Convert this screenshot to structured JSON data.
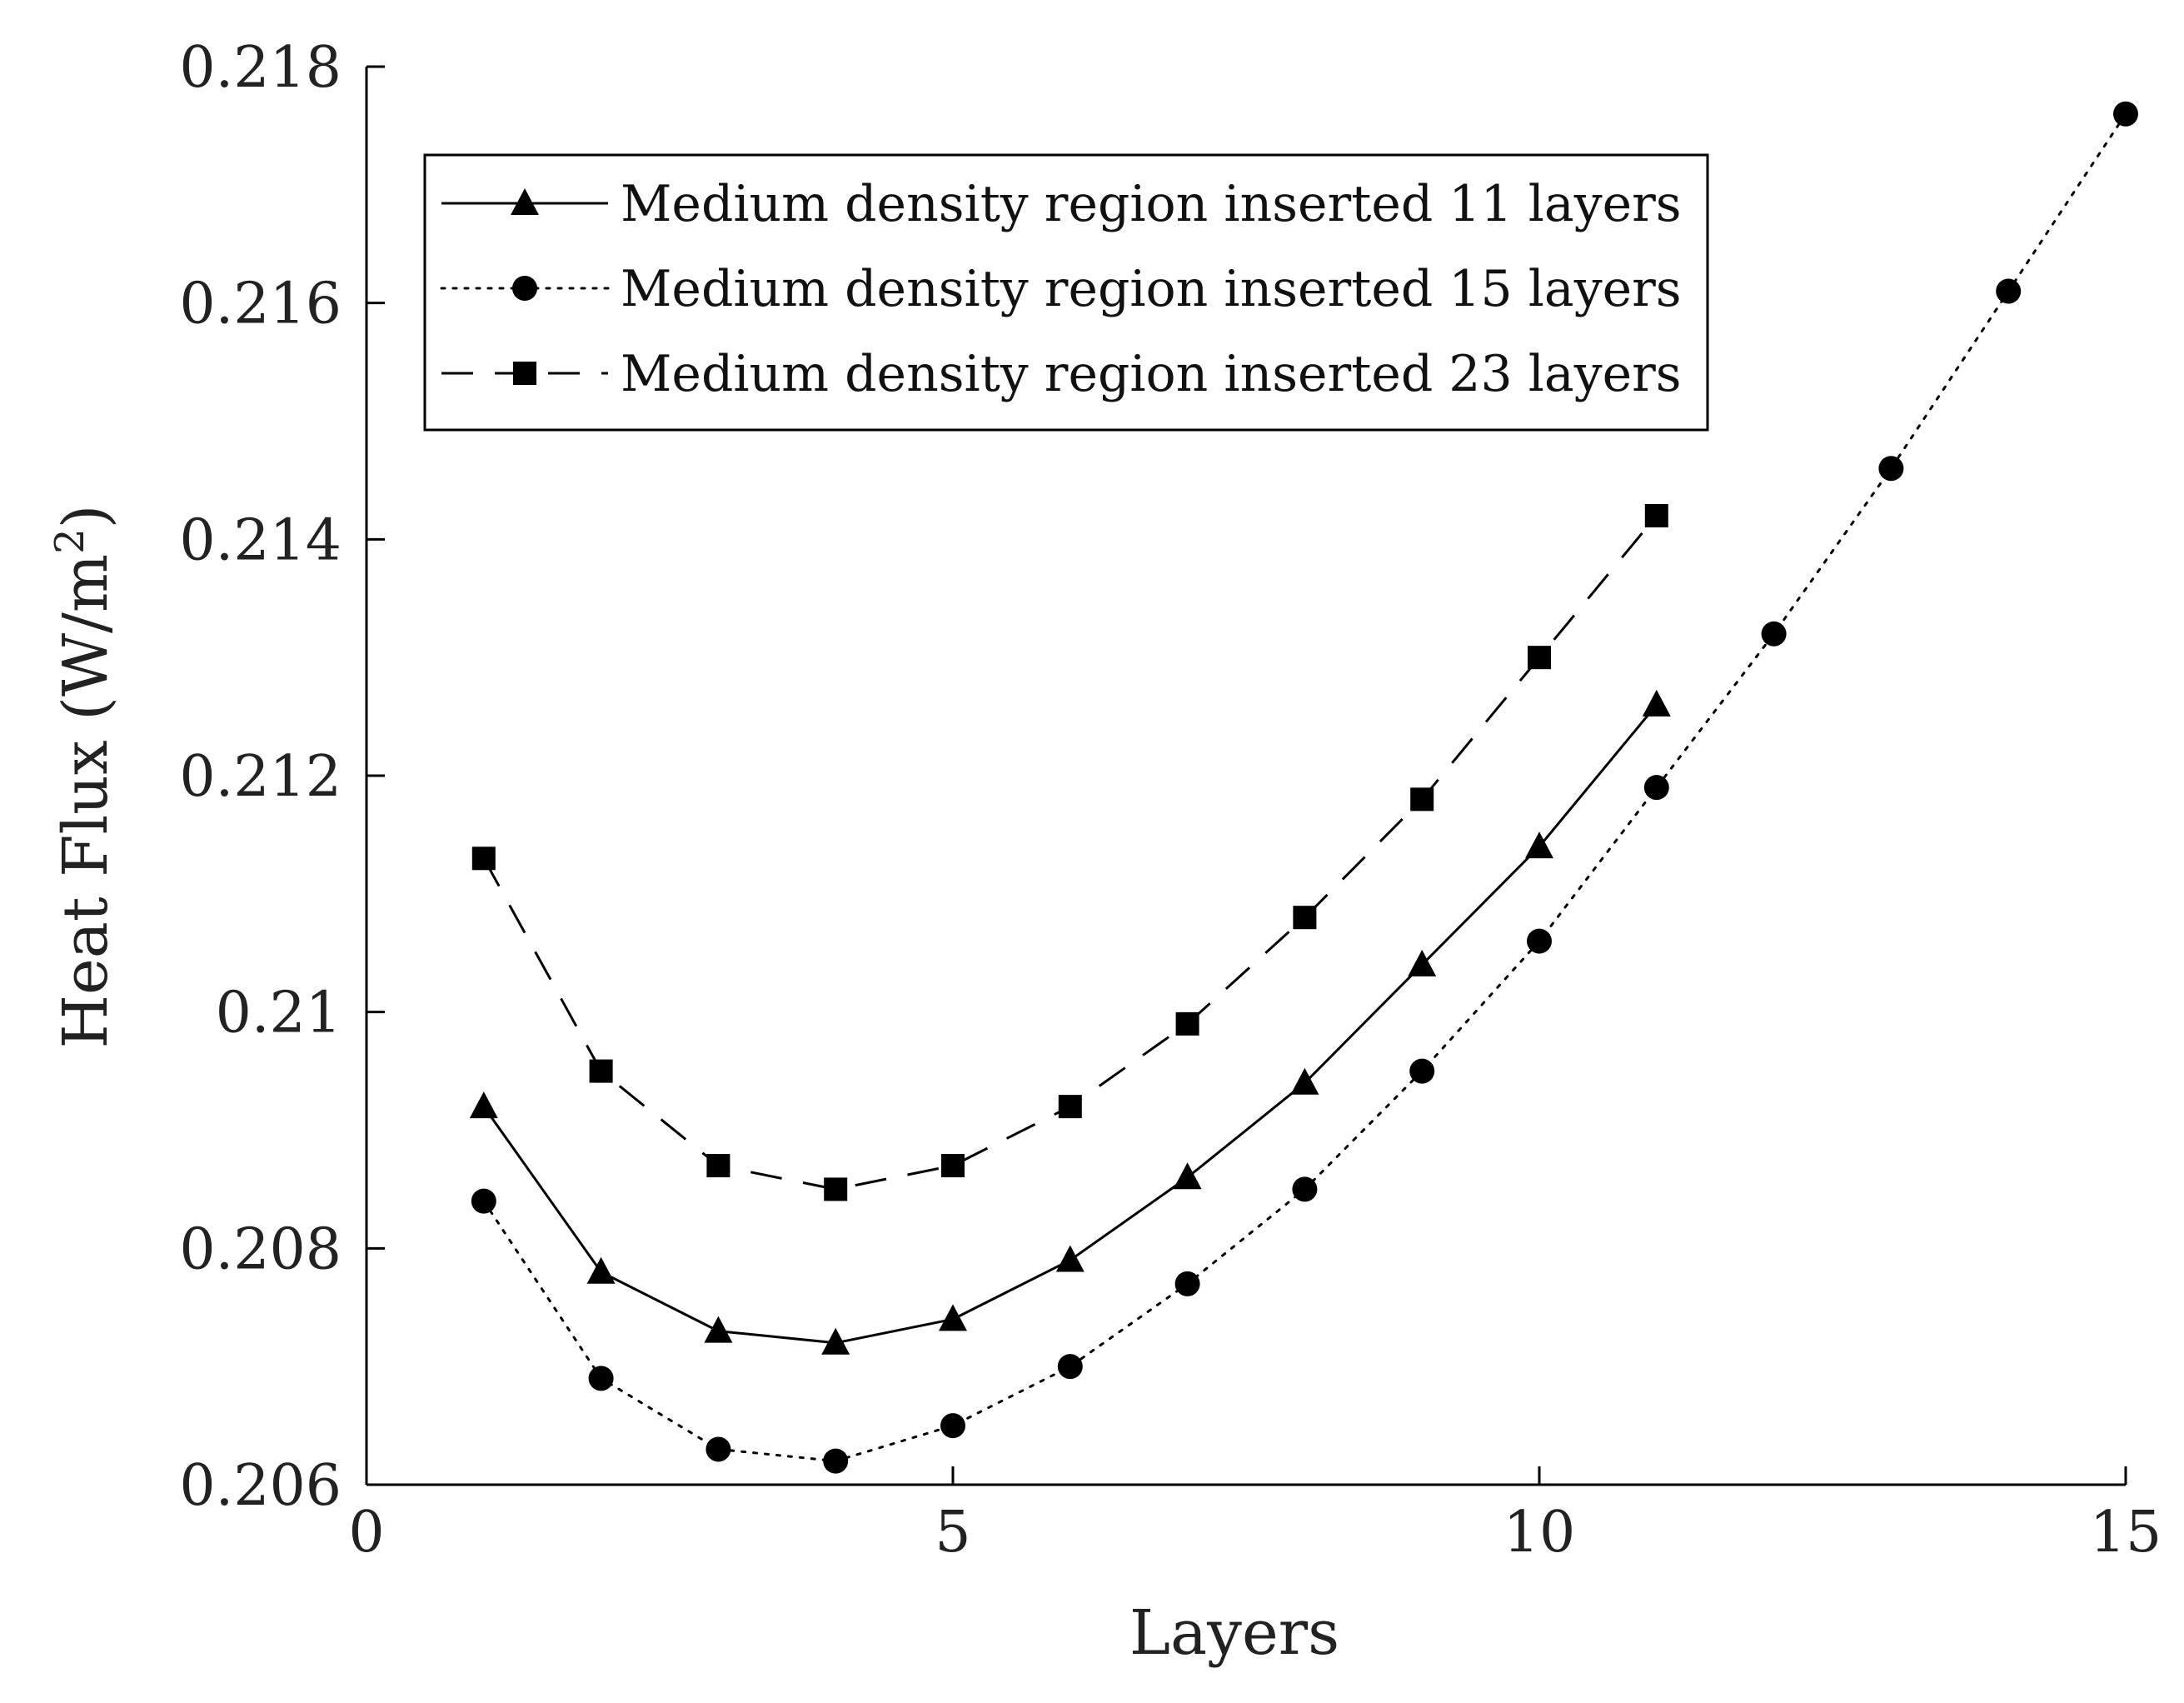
{
  "chart_data": {
    "type": "line",
    "xlabel": "Layers",
    "ylabel_main": "Heat Flux (W/m",
    "ylabel_sup": "2",
    "ylabel_close": ")",
    "xlim": [
      0,
      15
    ],
    "ylim": [
      0.206,
      0.218
    ],
    "xticks": [
      0,
      5,
      10,
      15
    ],
    "xtick_labels": [
      "0",
      "5",
      "10",
      "15"
    ],
    "yticks": [
      0.206,
      0.208,
      0.21,
      0.212,
      0.214,
      0.216,
      0.218
    ],
    "ytick_labels": [
      "0.206",
      "0.208",
      "0.21",
      "0.212",
      "0.214",
      "0.216",
      "0.218"
    ],
    "grid": false,
    "legend_position": "top-left",
    "series": [
      {
        "name": "Medium density region inserted 11 layers",
        "marker": "triangle",
        "line_style": "solid",
        "x": [
          1,
          2,
          3,
          4,
          5,
          6,
          7,
          8,
          9,
          10,
          11
        ],
        "y": [
          0.2092,
          0.2078,
          0.2073,
          0.2072,
          0.2074,
          0.2079,
          0.2086,
          0.2094,
          0.2104,
          0.2114,
          0.2126
        ]
      },
      {
        "name": "Medium density region inserted 15 layers",
        "marker": "circle",
        "line_style": "dotted",
        "x": [
          1,
          2,
          3,
          4,
          5,
          6,
          7,
          8,
          9,
          10,
          11,
          12,
          13,
          14,
          15
        ],
        "y": [
          0.2084,
          0.2069,
          0.2063,
          0.2062,
          0.2065,
          0.207,
          0.2077,
          0.2085,
          0.2095,
          0.2106,
          0.2119,
          0.2132,
          0.2146,
          0.2161,
          0.2176
        ]
      },
      {
        "name": "Medium density region inserted 23 layers",
        "marker": "square",
        "line_style": "dashed",
        "x": [
          1,
          2,
          3,
          4,
          5,
          6,
          7,
          8,
          9,
          10,
          11
        ],
        "y": [
          0.2113,
          0.2095,
          0.2087,
          0.2085,
          0.2087,
          0.2092,
          0.2099,
          0.2108,
          0.2118,
          0.213,
          0.2142
        ]
      }
    ]
  }
}
